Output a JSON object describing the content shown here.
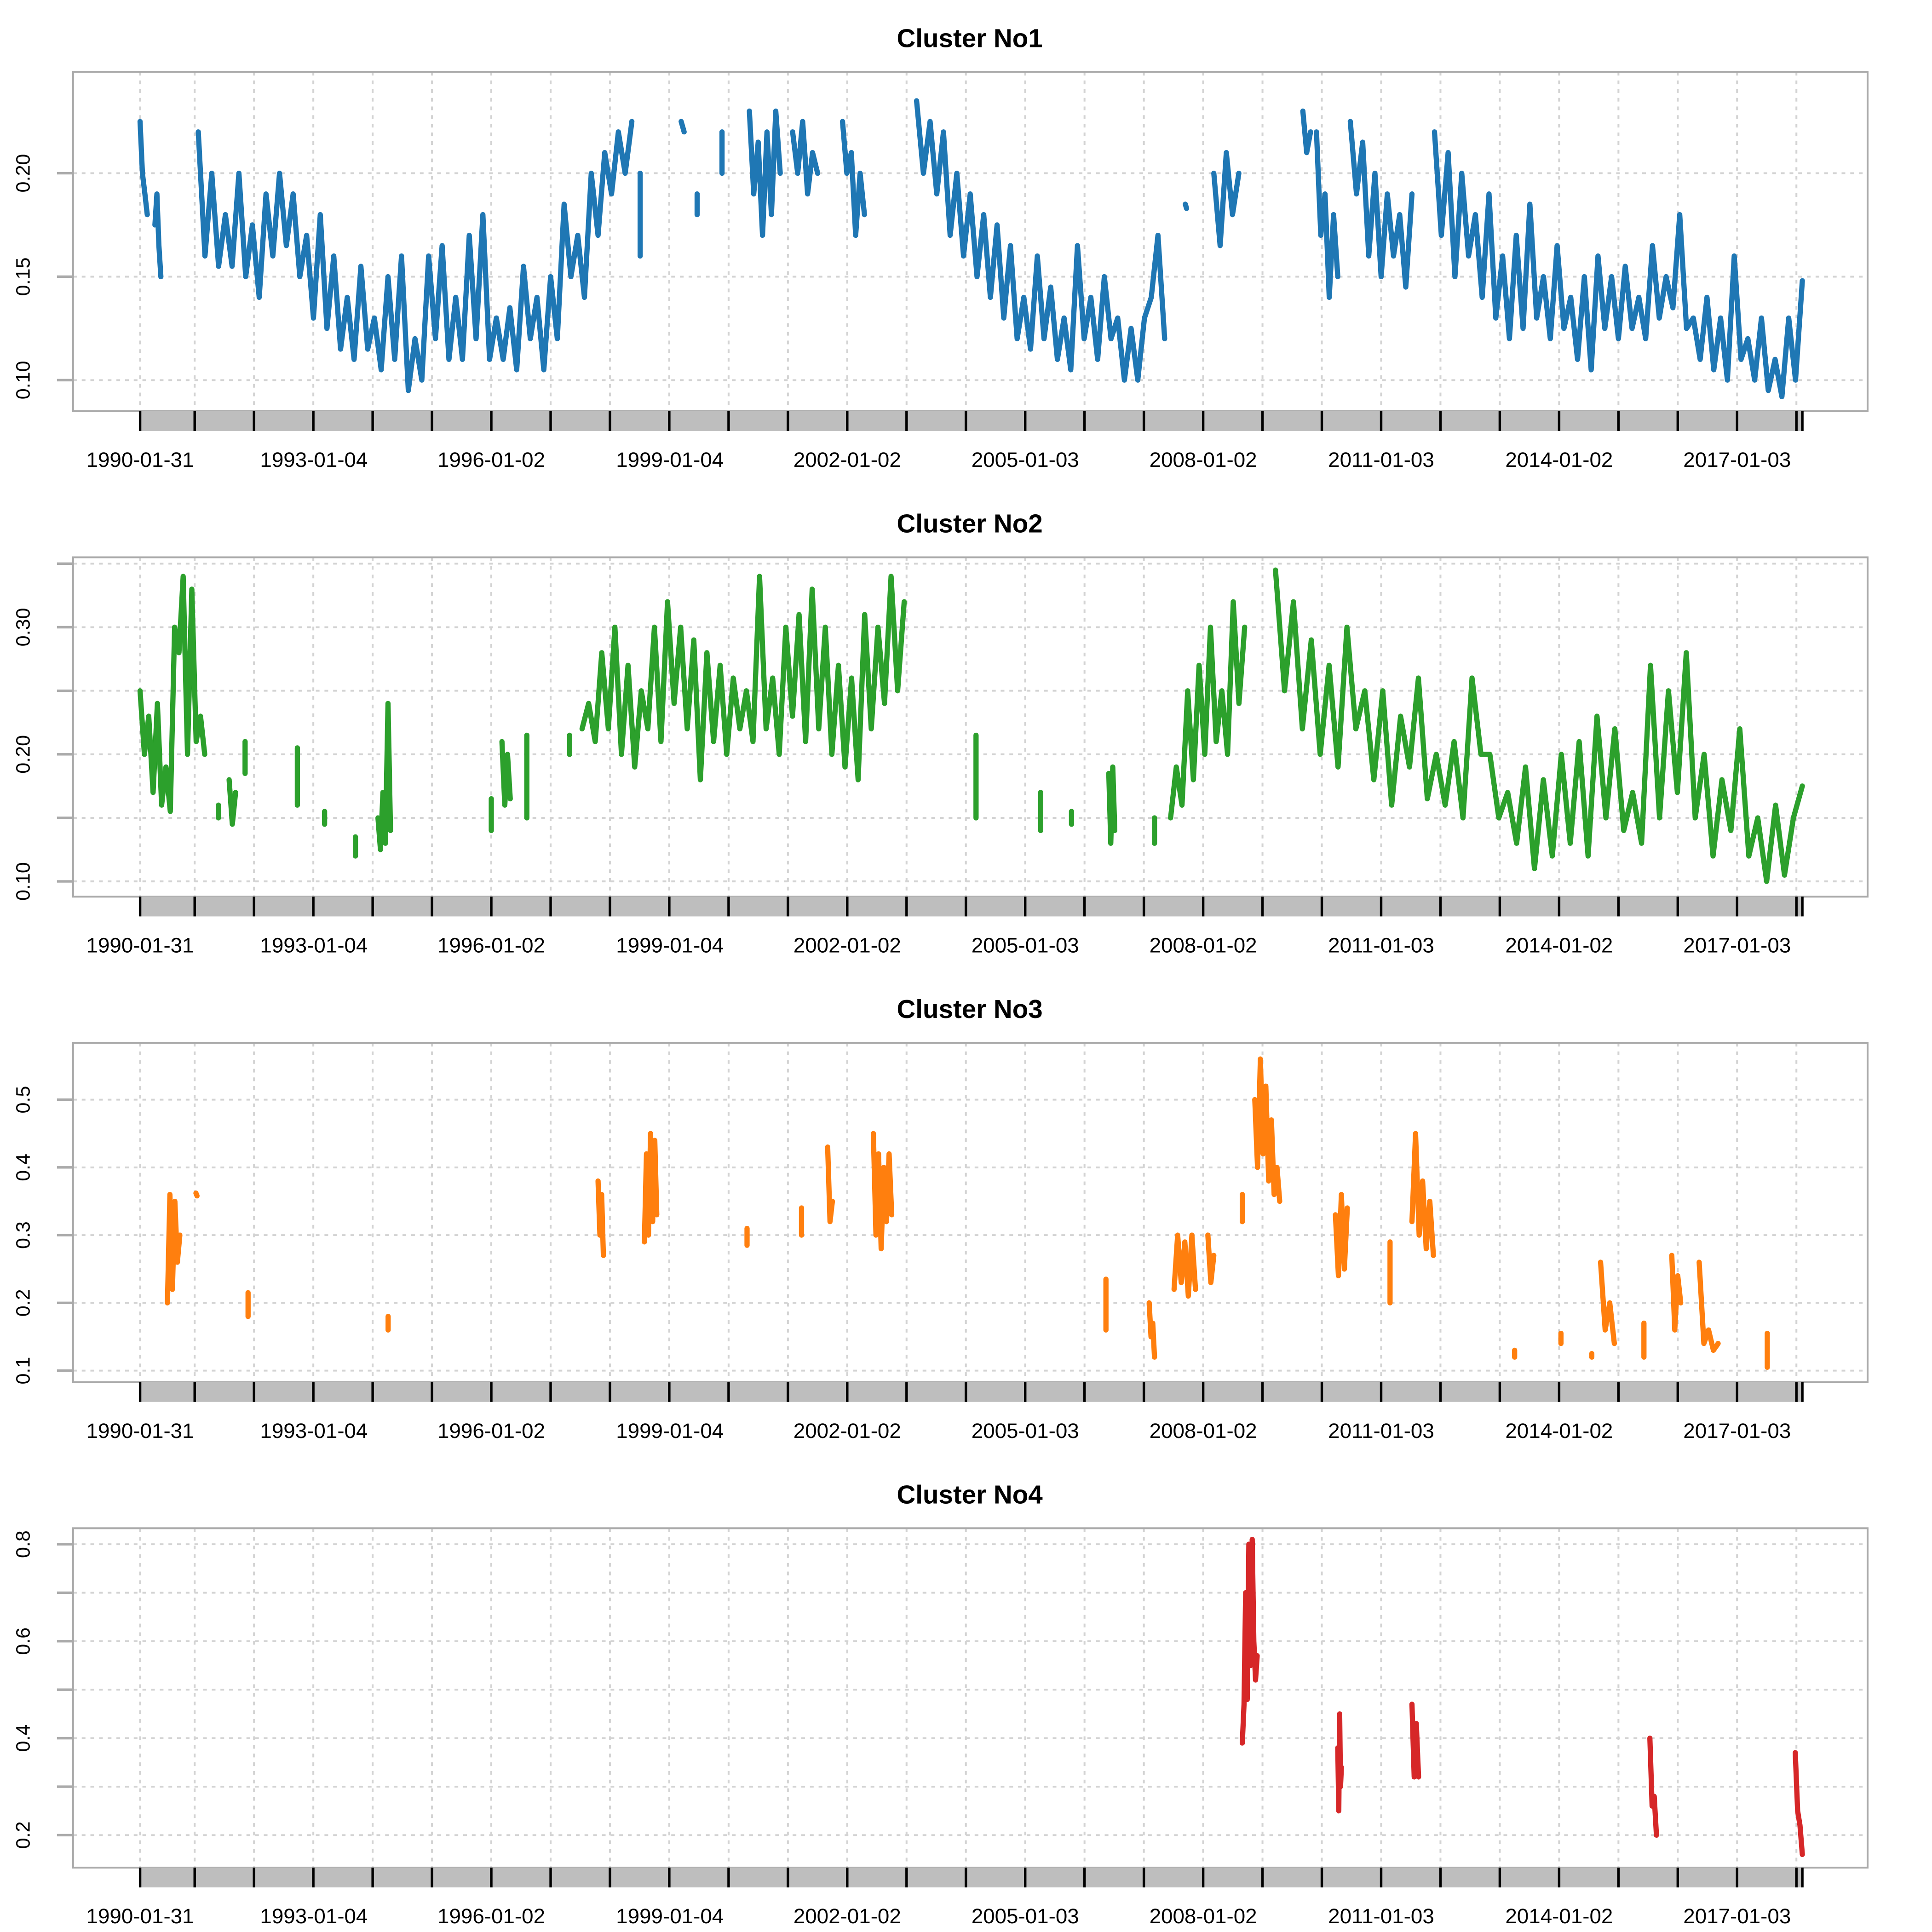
{
  "chart_data": [
    {
      "type": "line",
      "title": "Cluster No1",
      "color": "#1f77b4",
      "ylim": [
        0.085,
        0.249
      ],
      "yticks": [
        0.1,
        0.15,
        0.2
      ],
      "ylabels": [
        "0.10",
        "0.15",
        "0.20"
      ],
      "ygrid": [
        0.1,
        0.15,
        0.2
      ],
      "segments": [
        {
          "start": 1990.08,
          "end": 1990.2,
          "values": [
            0.225,
            0.2,
            0.19,
            0.18
          ]
        },
        {
          "start": 1990.33,
          "end": 1990.43,
          "values": [
            0.175,
            0.19,
            0.165,
            0.15
          ]
        },
        {
          "start": 1991.06,
          "end": 1998.37,
          "values": [
            0.22,
            0.16,
            0.2,
            0.155,
            0.18,
            0.155,
            0.2,
            0.15,
            0.175,
            0.14,
            0.19,
            0.16,
            0.2,
            0.165,
            0.19,
            0.15,
            0.17,
            0.13,
            0.18,
            0.125,
            0.16,
            0.115,
            0.14,
            0.11,
            0.155,
            0.115,
            0.13,
            0.105,
            0.15,
            0.11,
            0.16,
            0.095,
            0.12,
            0.1,
            0.16,
            0.12,
            0.165,
            0.11,
            0.14,
            0.11,
            0.17,
            0.12,
            0.18,
            0.11,
            0.13,
            0.11,
            0.135,
            0.105,
            0.155,
            0.12,
            0.14,
            0.105,
            0.15,
            0.12,
            0.185,
            0.15,
            0.17,
            0.14,
            0.2,
            0.17,
            0.21,
            0.19,
            0.22,
            0.2,
            0.225
          ]
        },
        {
          "start": 1998.51,
          "end": 1998.51,
          "values": [
            0.2,
            0.16
          ]
        },
        {
          "start": 1999.2,
          "end": 1999.25,
          "values": [
            0.225,
            0.22
          ]
        },
        {
          "start": 1999.47,
          "end": 1999.47,
          "values": [
            0.19,
            0.18
          ]
        },
        {
          "start": 1999.89,
          "end": 1999.89,
          "values": [
            0.2,
            0.22
          ]
        },
        {
          "start": 2000.35,
          "end": 2000.87,
          "values": [
            0.23,
            0.19,
            0.215,
            0.17,
            0.22,
            0.18,
            0.23,
            0.2
          ]
        },
        {
          "start": 2001.08,
          "end": 2001.5,
          "values": [
            0.22,
            0.2,
            0.225,
            0.19,
            0.21,
            0.2
          ]
        },
        {
          "start": 2001.92,
          "end": 2002.29,
          "values": [
            0.225,
            0.2,
            0.21,
            0.17,
            0.2,
            0.18
          ]
        },
        {
          "start": 2003.17,
          "end": 2007.35,
          "values": [
            0.235,
            0.2,
            0.225,
            0.19,
            0.22,
            0.17,
            0.2,
            0.16,
            0.19,
            0.15,
            0.18,
            0.14,
            0.175,
            0.13,
            0.165,
            0.12,
            0.14,
            0.115,
            0.16,
            0.12,
            0.145,
            0.11,
            0.13,
            0.105,
            0.165,
            0.12,
            0.14,
            0.11,
            0.15,
            0.12,
            0.13,
            0.1,
            0.125,
            0.1,
            0.13,
            0.14,
            0.17,
            0.12
          ]
        },
        {
          "start": 2007.7,
          "end": 2007.72,
          "values": [
            0.185,
            0.183
          ]
        },
        {
          "start": 2008.18,
          "end": 2008.6,
          "values": [
            0.2,
            0.165,
            0.21,
            0.18,
            0.2
          ]
        },
        {
          "start": 2009.68,
          "end": 2009.81,
          "values": [
            0.23,
            0.21,
            0.22
          ]
        },
        {
          "start": 2009.91,
          "end": 2010.27,
          "values": [
            0.22,
            0.17,
            0.19,
            0.14,
            0.18,
            0.15
          ]
        },
        {
          "start": 2010.48,
          "end": 2011.52,
          "values": [
            0.225,
            0.19,
            0.215,
            0.16,
            0.2,
            0.15,
            0.19,
            0.16,
            0.18,
            0.145,
            0.19
          ]
        },
        {
          "start": 2011.9,
          "end": 2018.1,
          "values": [
            0.22,
            0.17,
            0.21,
            0.15,
            0.2,
            0.16,
            0.18,
            0.14,
            0.19,
            0.13,
            0.16,
            0.12,
            0.17,
            0.125,
            0.185,
            0.13,
            0.15,
            0.12,
            0.165,
            0.125,
            0.14,
            0.11,
            0.15,
            0.105,
            0.16,
            0.125,
            0.15,
            0.12,
            0.155,
            0.125,
            0.14,
            0.12,
            0.165,
            0.13,
            0.15,
            0.135,
            0.18,
            0.125,
            0.13,
            0.11,
            0.14,
            0.105,
            0.13,
            0.1,
            0.16,
            0.11,
            0.12,
            0.1,
            0.13,
            0.095,
            0.11,
            0.092,
            0.13,
            0.1,
            0.148
          ]
        }
      ]
    },
    {
      "type": "line",
      "title": "Cluster No2",
      "color": "#2ca02c",
      "ylim": [
        0.088,
        0.355
      ],
      "yticks": [
        0.1,
        0.15,
        0.2,
        0.25,
        0.3,
        0.35
      ],
      "ylabels": [
        "0.10",
        "",
        "0.20",
        "",
        "0.30",
        ""
      ],
      "ygrid": [
        0.1,
        0.15,
        0.2,
        0.25,
        0.3,
        0.35
      ],
      "segments": [
        {
          "start": 1990.08,
          "end": 1991.17,
          "values": [
            0.25,
            0.2,
            0.23,
            0.17,
            0.24,
            0.16,
            0.19,
            0.155,
            0.3,
            0.28,
            0.34,
            0.2,
            0.33,
            0.21,
            0.23,
            0.2
          ]
        },
        {
          "start": 1991.4,
          "end": 1991.4,
          "values": [
            0.16,
            0.15
          ]
        },
        {
          "start": 1991.58,
          "end": 1991.69,
          "values": [
            0.18,
            0.145,
            0.17
          ]
        },
        {
          "start": 1991.85,
          "end": 1991.85,
          "values": [
            0.21,
            0.185
          ]
        },
        {
          "start": 1992.73,
          "end": 1992.73,
          "values": [
            0.205,
            0.16
          ]
        },
        {
          "start": 1993.19,
          "end": 1993.19,
          "values": [
            0.155,
            0.145
          ]
        },
        {
          "start": 1993.71,
          "end": 1993.71,
          "values": [
            0.135,
            0.12
          ]
        },
        {
          "start": 1994.09,
          "end": 1994.3,
          "values": [
            0.15,
            0.125,
            0.17,
            0.13,
            0.24,
            0.14
          ]
        },
        {
          "start": 1996.0,
          "end": 1996.0,
          "values": [
            0.165,
            0.14
          ]
        },
        {
          "start": 1996.18,
          "end": 1996.32,
          "values": [
            0.21,
            0.16,
            0.2,
            0.165
          ]
        },
        {
          "start": 1996.6,
          "end": 1996.6,
          "values": [
            0.215,
            0.15
          ]
        },
        {
          "start": 1997.32,
          "end": 1997.32,
          "values": [
            0.215,
            0.2
          ]
        },
        {
          "start": 1997.53,
          "end": 2002.96,
          "values": [
            0.22,
            0.24,
            0.21,
            0.28,
            0.22,
            0.3,
            0.2,
            0.27,
            0.19,
            0.25,
            0.22,
            0.3,
            0.21,
            0.32,
            0.24,
            0.3,
            0.22,
            0.29,
            0.18,
            0.28,
            0.21,
            0.27,
            0.2,
            0.26,
            0.22,
            0.25,
            0.21,
            0.34,
            0.22,
            0.26,
            0.2,
            0.3,
            0.23,
            0.31,
            0.21,
            0.33,
            0.22,
            0.3,
            0.2,
            0.27,
            0.19,
            0.26,
            0.18,
            0.31,
            0.22,
            0.3,
            0.24,
            0.34,
            0.25,
            0.32
          ]
        },
        {
          "start": 2004.17,
          "end": 2004.17,
          "values": [
            0.215,
            0.15
          ]
        },
        {
          "start": 2005.26,
          "end": 2005.26,
          "values": [
            0.17,
            0.14
          ]
        },
        {
          "start": 2005.78,
          "end": 2005.78,
          "values": [
            0.155,
            0.145
          ]
        },
        {
          "start": 2006.41,
          "end": 2006.51,
          "values": [
            0.185,
            0.13,
            0.19,
            0.14
          ]
        },
        {
          "start": 2007.18,
          "end": 2007.18,
          "values": [
            0.15,
            0.13
          ]
        },
        {
          "start": 2007.45,
          "end": 2008.7,
          "values": [
            0.15,
            0.19,
            0.16,
            0.25,
            0.18,
            0.27,
            0.2,
            0.3,
            0.21,
            0.25,
            0.2,
            0.32,
            0.24,
            0.3
          ]
        },
        {
          "start": 2009.22,
          "end": 2018.1,
          "values": [
            0.345,
            0.25,
            0.32,
            0.22,
            0.29,
            0.2,
            0.27,
            0.19,
            0.3,
            0.22,
            0.25,
            0.18,
            0.25,
            0.16,
            0.23,
            0.19,
            0.26,
            0.165,
            0.2,
            0.16,
            0.21,
            0.15,
            0.26,
            0.2,
            0.2,
            0.15,
            0.17,
            0.13,
            0.19,
            0.11,
            0.18,
            0.12,
            0.2,
            0.13,
            0.21,
            0.12,
            0.23,
            0.15,
            0.22,
            0.14,
            0.17,
            0.13,
            0.27,
            0.15,
            0.25,
            0.17,
            0.28,
            0.15,
            0.2,
            0.12,
            0.18,
            0.14,
            0.22,
            0.12,
            0.15,
            0.1,
            0.16,
            0.105,
            0.15,
            0.175
          ]
        }
      ]
    },
    {
      "type": "line",
      "title": "Cluster No3",
      "color": "#ff7f0e",
      "ylim": [
        0.083,
        0.584
      ],
      "yticks": [
        0.1,
        0.2,
        0.3,
        0.4,
        0.5
      ],
      "ylabels": [
        "0.1",
        "0.2",
        "0.3",
        "0.4",
        "0.5"
      ],
      "ygrid": [
        0.1,
        0.2,
        0.3,
        0.4,
        0.5
      ],
      "segments": [
        {
          "start": 1990.54,
          "end": 1990.75,
          "values": [
            0.2,
            0.36,
            0.22,
            0.35,
            0.26,
            0.3
          ]
        },
        {
          "start": 1991.02,
          "end": 1991.04,
          "values": [
            0.362,
            0.358
          ]
        },
        {
          "start": 1991.9,
          "end": 1991.9,
          "values": [
            0.215,
            0.18
          ]
        },
        {
          "start": 1994.26,
          "end": 1994.26,
          "values": [
            0.18,
            0.16
          ]
        },
        {
          "start": 1997.8,
          "end": 1997.89,
          "values": [
            0.38,
            0.3,
            0.36,
            0.27
          ]
        },
        {
          "start": 1998.58,
          "end": 1998.79,
          "values": [
            0.29,
            0.42,
            0.3,
            0.45,
            0.32,
            0.44,
            0.33
          ]
        },
        {
          "start": 2000.31,
          "end": 2000.31,
          "values": [
            0.31,
            0.285
          ]
        },
        {
          "start": 2001.23,
          "end": 2001.23,
          "values": [
            0.34,
            0.3
          ]
        },
        {
          "start": 2001.67,
          "end": 2001.75,
          "values": [
            0.43,
            0.32,
            0.35
          ]
        },
        {
          "start": 2002.44,
          "end": 2002.75,
          "values": [
            0.45,
            0.3,
            0.42,
            0.28,
            0.4,
            0.32,
            0.42,
            0.33
          ]
        },
        {
          "start": 2006.36,
          "end": 2006.36,
          "values": [
            0.235,
            0.16
          ]
        },
        {
          "start": 2007.09,
          "end": 2007.18,
          "values": [
            0.2,
            0.15,
            0.17,
            0.12
          ]
        },
        {
          "start": 2007.51,
          "end": 2007.87,
          "values": [
            0.22,
            0.3,
            0.23,
            0.29,
            0.21,
            0.3,
            0.22
          ]
        },
        {
          "start": 2008.08,
          "end": 2008.18,
          "values": [
            0.3,
            0.23,
            0.27
          ]
        },
        {
          "start": 2008.66,
          "end": 2008.66,
          "values": [
            0.36,
            0.32
          ]
        },
        {
          "start": 2008.87,
          "end": 2009.29,
          "values": [
            0.5,
            0.4,
            0.56,
            0.42,
            0.52,
            0.38,
            0.47,
            0.36,
            0.4,
            0.35
          ]
        },
        {
          "start": 2010.23,
          "end": 2010.43,
          "values": [
            0.33,
            0.24,
            0.36,
            0.25,
            0.34
          ]
        },
        {
          "start": 2011.15,
          "end": 2011.15,
          "values": [
            0.29,
            0.2
          ]
        },
        {
          "start": 2011.52,
          "end": 2011.88,
          "values": [
            0.32,
            0.45,
            0.3,
            0.38,
            0.28,
            0.35,
            0.27
          ]
        },
        {
          "start": 2013.25,
          "end": 2013.25,
          "values": [
            0.13,
            0.12
          ]
        },
        {
          "start": 2014.03,
          "end": 2014.03,
          "values": [
            0.155,
            0.14
          ]
        },
        {
          "start": 2014.55,
          "end": 2014.55,
          "values": [
            0.125,
            0.12
          ]
        },
        {
          "start": 2014.7,
          "end": 2014.93,
          "values": [
            0.26,
            0.16,
            0.2,
            0.14
          ]
        },
        {
          "start": 2015.43,
          "end": 2015.43,
          "values": [
            0.17,
            0.12
          ]
        },
        {
          "start": 2015.9,
          "end": 2016.05,
          "values": [
            0.27,
            0.16,
            0.24,
            0.2
          ]
        },
        {
          "start": 2016.36,
          "end": 2016.68,
          "values": [
            0.26,
            0.14,
            0.16,
            0.13,
            0.14
          ]
        },
        {
          "start": 2017.51,
          "end": 2017.51,
          "values": [
            0.155,
            0.105,
            0.12
          ]
        }
      ]
    },
    {
      "type": "line",
      "title": "Cluster No4",
      "color": "#d62728",
      "ylim": [
        0.133,
        0.833
      ],
      "yticks": [
        0.2,
        0.3,
        0.4,
        0.5,
        0.6,
        0.7,
        0.8
      ],
      "ylabels": [
        "0.2",
        "",
        "0.4",
        "",
        "0.6",
        "",
        "0.8"
      ],
      "ygrid": [
        0.2,
        0.3,
        0.4,
        0.5,
        0.6,
        0.7,
        0.8
      ],
      "segments": [
        {
          "start": 2008.66,
          "end": 2008.91,
          "values": [
            0.39,
            0.47,
            0.7,
            0.48,
            0.8,
            0.55,
            0.81,
            0.6,
            0.52,
            0.57
          ]
        },
        {
          "start": 2010.27,
          "end": 2010.33,
          "values": [
            0.38,
            0.25,
            0.45,
            0.3,
            0.34
          ]
        },
        {
          "start": 2011.52,
          "end": 2011.63,
          "values": [
            0.47,
            0.32,
            0.43,
            0.32
          ]
        },
        {
          "start": 2015.53,
          "end": 2015.64,
          "values": [
            0.4,
            0.26,
            0.28,
            0.2
          ]
        },
        {
          "start": 2017.98,
          "end": 2018.1,
          "values": [
            0.37,
            0.25,
            0.22,
            0.16
          ]
        }
      ]
    }
  ],
  "x_axis": {
    "xlim": [
      1988.95,
      2019.2
    ],
    "data_range": [
      1990.08,
      2018.1
    ],
    "major_ticks": [
      1990.08,
      1991,
      1992,
      1993,
      1994,
      1995,
      1996,
      1997,
      1998,
      1999,
      2000,
      2001,
      2002,
      2003,
      2004,
      2005,
      2006,
      2007,
      2008,
      2009,
      2010,
      2011,
      2012,
      2013,
      2014,
      2015,
      2016,
      2017,
      2018,
      2018.1
    ],
    "label_positions": [
      1990.08,
      1993.01,
      1996.0,
      1999.01,
      2002.0,
      2005.0,
      2008.0,
      2011.0,
      2014.0,
      2017.0
    ],
    "labels": [
      "1990-01-31",
      "1993-01-04",
      "1996-01-02",
      "1999-01-04",
      "2002-01-02",
      "2005-01-03",
      "2008-01-02",
      "2011-01-03",
      "2014-01-02",
      "2017-01-03"
    ]
  }
}
